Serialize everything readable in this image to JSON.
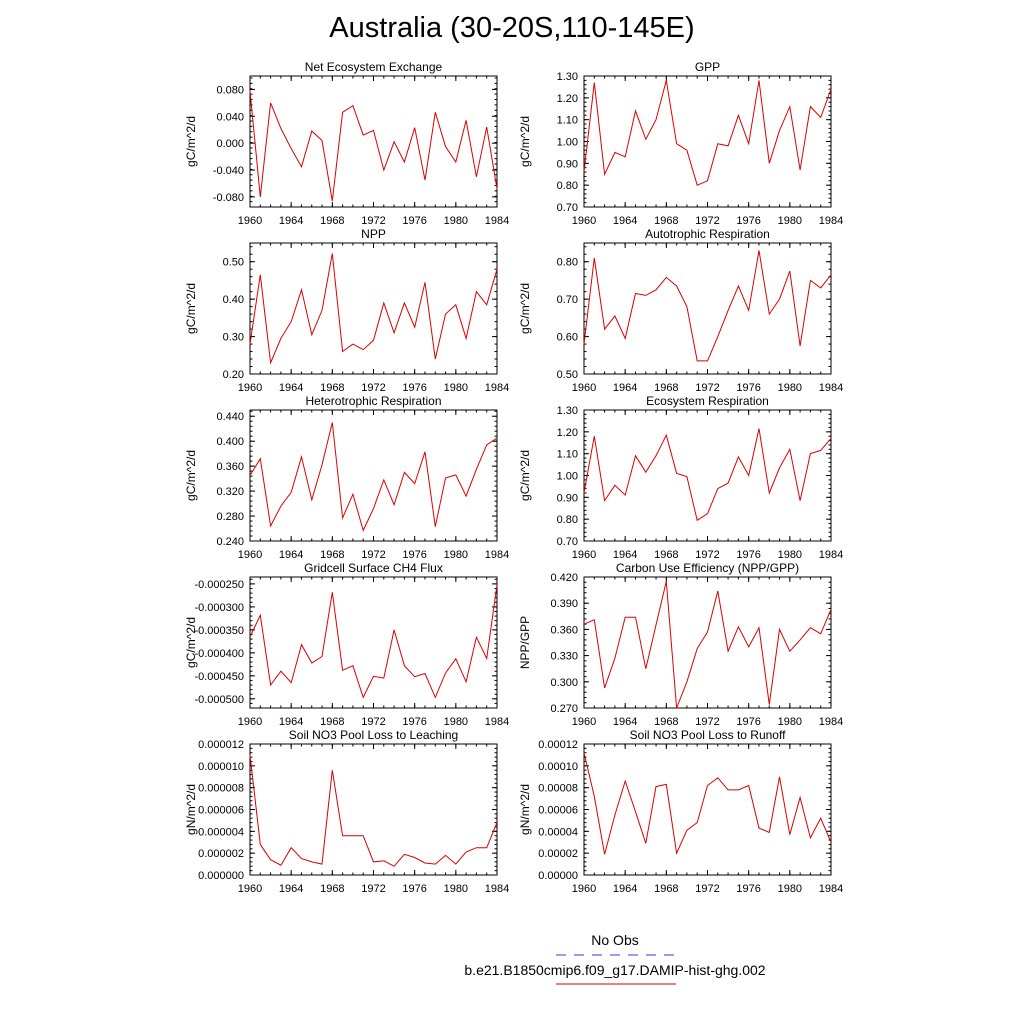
{
  "title": "Australia (30-20S,110-145E)",
  "legend": {
    "items": [
      {
        "label": "No Obs",
        "color": "#3b3bcc",
        "style": "dashed"
      },
      {
        "label": "b.e21.B1850cmip6.f09_g17.DAMIP-hist-ghg.002",
        "color": "#dd0000",
        "style": "solid"
      }
    ]
  },
  "chart_data": [
    {
      "type": "line",
      "title": "Net Ecosystem Exchange",
      "ylabel": "gC/m^2/d",
      "xlim": [
        1960,
        1984
      ],
      "xticks": [
        "1960",
        "1964",
        "1968",
        "1972",
        "1976",
        "1980",
        "1984"
      ],
      "ylim": [
        -0.095,
        0.1
      ],
      "yticks": [
        "-0.080",
        "-0.040",
        "0.000",
        "0.040",
        "0.080"
      ],
      "series": [
        {
          "color": "#dd0000",
          "x": [
            1960,
            1961,
            1962,
            1963,
            1964,
            1965,
            1966,
            1967,
            1968,
            1969,
            1970,
            1971,
            1972,
            1973,
            1974,
            1975,
            1976,
            1977,
            1978,
            1979,
            1980,
            1981,
            1982,
            1983,
            1984
          ],
          "y": [
            0.078,
            -0.08,
            0.06,
            0.022,
            -0.008,
            -0.035,
            0.018,
            0.004,
            -0.086,
            0.046,
            0.056,
            0.012,
            0.019,
            -0.04,
            0.002,
            -0.028,
            0.023,
            -0.055,
            0.046,
            -0.005,
            -0.028,
            0.034,
            -0.05,
            0.024,
            -0.068
          ]
        }
      ]
    },
    {
      "type": "line",
      "title": "GPP",
      "ylabel": "gC/m^2/d",
      "xlim": [
        1960,
        1984
      ],
      "xticks": [
        "1960",
        "1964",
        "1968",
        "1972",
        "1976",
        "1980",
        "1984"
      ],
      "ylim": [
        0.7,
        1.3
      ],
      "yticks": [
        "0.70",
        "0.80",
        "0.90",
        "1.00",
        "1.10",
        "1.20",
        "1.30"
      ],
      "series": [
        {
          "color": "#dd0000",
          "x": [
            1960,
            1961,
            1962,
            1963,
            1964,
            1965,
            1966,
            1967,
            1968,
            1969,
            1970,
            1971,
            1972,
            1973,
            1974,
            1975,
            1976,
            1977,
            1978,
            1979,
            1980,
            1981,
            1982,
            1983,
            1984
          ],
          "y": [
            0.86,
            1.27,
            0.85,
            0.95,
            0.93,
            1.14,
            1.01,
            1.1,
            1.28,
            0.99,
            0.96,
            0.8,
            0.82,
            0.99,
            0.98,
            1.12,
            0.99,
            1.28,
            0.9,
            1.05,
            1.16,
            0.87,
            1.16,
            1.11,
            1.24
          ]
        }
      ]
    },
    {
      "type": "line",
      "title": "NPP",
      "ylabel": "gC/m^2/d",
      "xlim": [
        1960,
        1984
      ],
      "xticks": [
        "1960",
        "1964",
        "1968",
        "1972",
        "1976",
        "1980",
        "1984"
      ],
      "ylim": [
        0.2,
        0.55
      ],
      "yticks": [
        "0.20",
        "0.30",
        "0.40",
        "0.50"
      ],
      "series": [
        {
          "color": "#dd0000",
          "x": [
            1960,
            1961,
            1962,
            1963,
            1964,
            1965,
            1966,
            1967,
            1968,
            1969,
            1970,
            1971,
            1972,
            1973,
            1974,
            1975,
            1976,
            1977,
            1978,
            1979,
            1980,
            1981,
            1982,
            1983,
            1984
          ],
          "y": [
            0.28,
            0.465,
            0.23,
            0.295,
            0.34,
            0.425,
            0.305,
            0.37,
            0.522,
            0.26,
            0.28,
            0.265,
            0.29,
            0.39,
            0.31,
            0.39,
            0.325,
            0.445,
            0.24,
            0.36,
            0.385,
            0.295,
            0.42,
            0.385,
            0.48
          ]
        }
      ]
    },
    {
      "type": "line",
      "title": "Autotrophic Respiration",
      "ylabel": "gC/m^2/d",
      "xlim": [
        1960,
        1984
      ],
      "xticks": [
        "1960",
        "1964",
        "1968",
        "1972",
        "1976",
        "1980",
        "1984"
      ],
      "ylim": [
        0.5,
        0.85
      ],
      "yticks": [
        "0.50",
        "0.60",
        "0.70",
        "0.80"
      ],
      "series": [
        {
          "color": "#dd0000",
          "x": [
            1960,
            1961,
            1962,
            1963,
            1964,
            1965,
            1966,
            1967,
            1968,
            1969,
            1970,
            1971,
            1972,
            1973,
            1974,
            1975,
            1976,
            1977,
            1978,
            1979,
            1980,
            1981,
            1982,
            1983,
            1984
          ],
          "y": [
            0.58,
            0.81,
            0.62,
            0.655,
            0.595,
            0.715,
            0.71,
            0.725,
            0.758,
            0.735,
            0.68,
            0.535,
            0.535,
            0.6,
            0.67,
            0.735,
            0.67,
            0.83,
            0.66,
            0.7,
            0.775,
            0.575,
            0.75,
            0.73,
            0.765
          ]
        }
      ]
    },
    {
      "type": "line",
      "title": "Heterotrophic Respiration",
      "ylabel": "gC/m^2/d",
      "xlim": [
        1960,
        1984
      ],
      "xticks": [
        "1960",
        "1964",
        "1968",
        "1972",
        "1976",
        "1980",
        "1984"
      ],
      "ylim": [
        0.24,
        0.45
      ],
      "yticks": [
        "0.240",
        "0.280",
        "0.320",
        "0.360",
        "0.400",
        "0.440"
      ],
      "series": [
        {
          "color": "#dd0000",
          "x": [
            1960,
            1961,
            1962,
            1963,
            1964,
            1965,
            1966,
            1967,
            1968,
            1969,
            1970,
            1971,
            1972,
            1973,
            1974,
            1975,
            1976,
            1977,
            1978,
            1979,
            1980,
            1981,
            1982,
            1983,
            1984
          ],
          "y": [
            0.345,
            0.372,
            0.264,
            0.296,
            0.318,
            0.375,
            0.306,
            0.362,
            0.43,
            0.277,
            0.315,
            0.257,
            0.292,
            0.338,
            0.298,
            0.35,
            0.332,
            0.383,
            0.263,
            0.341,
            0.346,
            0.312,
            0.355,
            0.394,
            0.405
          ]
        }
      ]
    },
    {
      "type": "line",
      "title": "Ecosystem Respiration",
      "ylabel": "gC/m^2/d",
      "xlim": [
        1960,
        1984
      ],
      "xticks": [
        "1960",
        "1964",
        "1968",
        "1972",
        "1976",
        "1980",
        "1984"
      ],
      "ylim": [
        0.7,
        1.3
      ],
      "yticks": [
        "0.70",
        "0.80",
        "0.90",
        "1.00",
        "1.10",
        "1.20",
        "1.30"
      ],
      "series": [
        {
          "color": "#dd0000",
          "x": [
            1960,
            1961,
            1962,
            1963,
            1964,
            1965,
            1966,
            1967,
            1968,
            1969,
            1970,
            1971,
            1972,
            1973,
            1974,
            1975,
            1976,
            1977,
            1978,
            1979,
            1980,
            1981,
            1982,
            1983,
            1984
          ],
          "y": [
            0.92,
            1.18,
            0.885,
            0.955,
            0.91,
            1.09,
            1.015,
            1.09,
            1.185,
            1.01,
            0.995,
            0.795,
            0.825,
            0.94,
            0.965,
            1.085,
            1.0,
            1.215,
            0.92,
            1.035,
            1.12,
            0.885,
            1.1,
            1.115,
            1.17
          ]
        }
      ]
    },
    {
      "type": "line",
      "title": "Gridcell Surface CH4 Flux",
      "ylabel": "gC/m^2/d",
      "xlim": [
        1960,
        1984
      ],
      "xticks": [
        "1960",
        "1964",
        "1968",
        "1972",
        "1976",
        "1980",
        "1984"
      ],
      "ylim": [
        -0.00052,
        -0.000235
      ],
      "yticks": [
        "-0.000500",
        "-0.000450",
        "-0.000400",
        "-0.000350",
        "-0.000300",
        "-0.000250"
      ],
      "series": [
        {
          "color": "#dd0000",
          "x": [
            1960,
            1961,
            1962,
            1963,
            1964,
            1965,
            1966,
            1967,
            1968,
            1969,
            1970,
            1971,
            1972,
            1973,
            1974,
            1975,
            1976,
            1977,
            1978,
            1979,
            1980,
            1981,
            1982,
            1983,
            1984
          ],
          "y": [
            -0.000365,
            -0.000318,
            -0.00047,
            -0.00044,
            -0.000465,
            -0.000382,
            -0.000422,
            -0.000408,
            -0.000268,
            -0.000438,
            -0.000428,
            -0.000497,
            -0.000451,
            -0.000455,
            -0.00035,
            -0.000428,
            -0.000452,
            -0.000445,
            -0.000497,
            -0.000444,
            -0.000413,
            -0.000463,
            -0.000366,
            -0.000412,
            -0.000252
          ]
        }
      ]
    },
    {
      "type": "line",
      "title": "Carbon Use Efficiency (NPP/GPP)",
      "ylabel": "NPP/GPP",
      "xlim": [
        1960,
        1984
      ],
      "xticks": [
        "1960",
        "1964",
        "1968",
        "1972",
        "1976",
        "1980",
        "1984"
      ],
      "ylim": [
        0.27,
        0.42
      ],
      "yticks": [
        "0.270",
        "0.300",
        "0.330",
        "0.360",
        "0.390",
        "0.420"
      ],
      "series": [
        {
          "color": "#dd0000",
          "x": [
            1960,
            1961,
            1962,
            1963,
            1964,
            1965,
            1966,
            1967,
            1968,
            1969,
            1970,
            1971,
            1972,
            1973,
            1974,
            1975,
            1976,
            1977,
            1978,
            1979,
            1980,
            1981,
            1982,
            1983,
            1984
          ],
          "y": [
            0.366,
            0.371,
            0.293,
            0.327,
            0.374,
            0.374,
            0.315,
            0.365,
            0.415,
            0.27,
            0.3,
            0.338,
            0.357,
            0.404,
            0.335,
            0.363,
            0.34,
            0.362,
            0.274,
            0.36,
            0.335,
            0.348,
            0.362,
            0.355,
            0.383
          ]
        }
      ]
    },
    {
      "type": "line",
      "title": "Soil NO3 Pool Loss to Leaching",
      "ylabel": "gN/m^2/d",
      "xlim": [
        1960,
        1984
      ],
      "xticks": [
        "1960",
        "1964",
        "1968",
        "1972",
        "1976",
        "1980",
        "1984"
      ],
      "ylim": [
        0,
        1.2e-05
      ],
      "yticks": [
        "0.000000",
        "0.000002",
        "0.000004",
        "0.000006",
        "0.000008",
        "0.000010",
        "0.000012"
      ],
      "series": [
        {
          "color": "#dd0000",
          "x": [
            1960,
            1961,
            1962,
            1963,
            1964,
            1965,
            1966,
            1967,
            1968,
            1969,
            1970,
            1971,
            1972,
            1973,
            1974,
            1975,
            1976,
            1977,
            1978,
            1979,
            1980,
            1981,
            1982,
            1983,
            1984
          ],
          "y": [
            1.1e-05,
            2.8e-06,
            1.4e-06,
            9e-07,
            2.5e-06,
            1.5e-06,
            1.2e-06,
            1e-06,
            9.6e-06,
            3.6e-06,
            3.6e-06,
            3.6e-06,
            1.2e-06,
            1.3e-06,
            8e-07,
            1.9e-06,
            1.6e-06,
            1.1e-06,
            1e-06,
            1.8e-06,
            1e-06,
            2.1e-06,
            2.5e-06,
            2.5e-06,
            4.8e-06
          ]
        }
      ]
    },
    {
      "type": "line",
      "title": "Soil NO3 Pool Loss to Runoff",
      "ylabel": "gN/m^2/d",
      "xlim": [
        1960,
        1984
      ],
      "xticks": [
        "1960",
        "1964",
        "1968",
        "1972",
        "1976",
        "1980",
        "1984"
      ],
      "ylim": [
        0,
        0.00012
      ],
      "yticks": [
        "0.00000",
        "0.00002",
        "0.00004",
        "0.00006",
        "0.00008",
        "0.00010",
        "0.00012"
      ],
      "series": [
        {
          "color": "#dd0000",
          "x": [
            1960,
            1961,
            1962,
            1963,
            1964,
            1965,
            1966,
            1967,
            1968,
            1969,
            1970,
            1971,
            1972,
            1973,
            1974,
            1975,
            1976,
            1977,
            1978,
            1979,
            1980,
            1981,
            1982,
            1983,
            1984
          ],
          "y": [
            0.000112,
            7.2e-05,
            1.9e-05,
            5.5e-05,
            8.6e-05,
            5.8e-05,
            2.9e-05,
            8.1e-05,
            8.3e-05,
            2e-05,
            4.1e-05,
            4.8e-05,
            8.2e-05,
            8.9e-05,
            7.8e-05,
            7.8e-05,
            8.2e-05,
            4.3e-05,
            3.9e-05,
            9e-05,
            3.7e-05,
            7.1e-05,
            3.4e-05,
            5.2e-05,
            3e-05
          ]
        }
      ]
    }
  ]
}
